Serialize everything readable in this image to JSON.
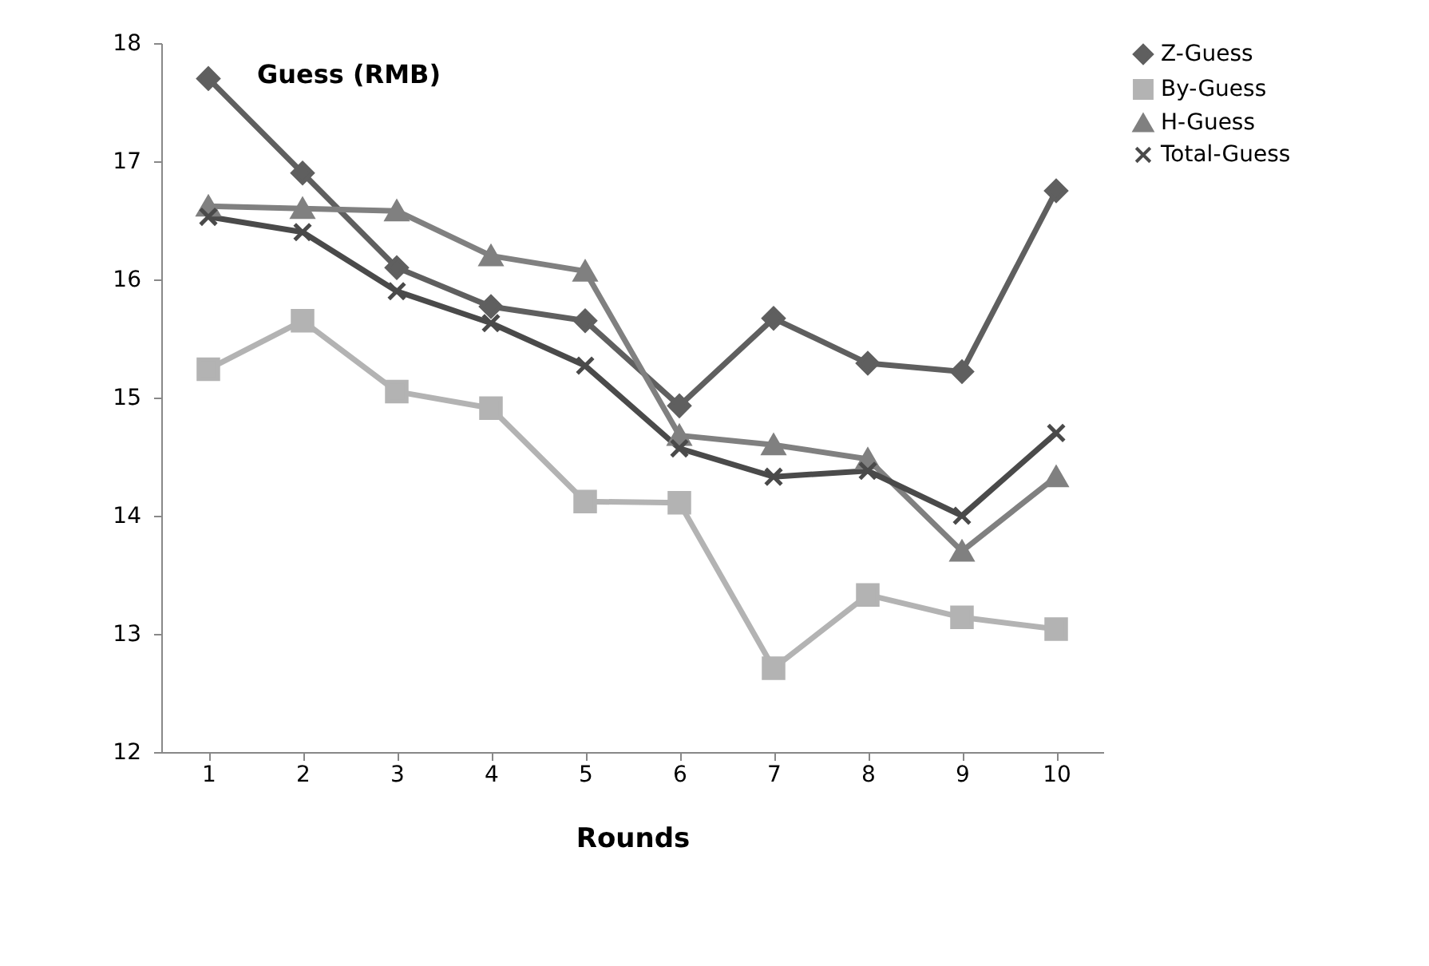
{
  "chart_data": {
    "type": "line",
    "title": "Guess (RMB)",
    "xlabel": "Rounds",
    "categories": [
      "1",
      "2",
      "3",
      "4",
      "5",
      "6",
      "7",
      "8",
      "9",
      "10"
    ],
    "series": [
      {
        "name": "Z-Guess",
        "color": "#5f5f5f",
        "marker": "diamond",
        "values": [
          17.7,
          16.9,
          16.1,
          15.77,
          15.65,
          14.93,
          15.67,
          15.29,
          15.22,
          16.75
        ]
      },
      {
        "name": "By-Guess",
        "color": "#b3b3b3",
        "marker": "square",
        "values": [
          15.24,
          15.65,
          15.05,
          14.91,
          14.12,
          14.11,
          12.71,
          13.33,
          13.14,
          13.04
        ]
      },
      {
        "name": "H-Guess",
        "color": "#808080",
        "marker": "triangle",
        "values": [
          16.62,
          16.6,
          16.58,
          16.2,
          16.07,
          14.68,
          14.6,
          14.48,
          13.7,
          14.33
        ]
      },
      {
        "name": "Total-Guess",
        "color": "#4a4a4a",
        "marker": "cross",
        "values": [
          16.53,
          16.4,
          15.9,
          15.63,
          15.27,
          14.57,
          14.33,
          14.38,
          14.0,
          14.7
        ]
      }
    ],
    "ylim": [
      12,
      18
    ],
    "yticks": [
      12,
      13,
      14,
      15,
      16,
      17,
      18
    ],
    "grid": false,
    "legend": "right"
  }
}
